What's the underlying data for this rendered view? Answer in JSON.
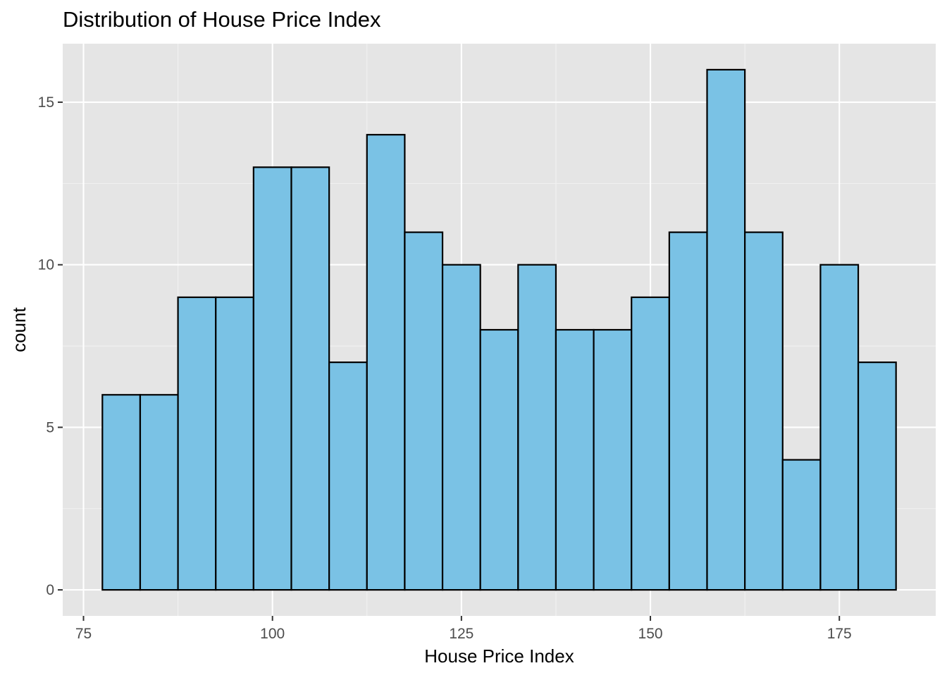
{
  "chart_data": {
    "type": "bar",
    "subtype": "histogram",
    "title": "Distribution of House Price Index",
    "xlabel": "House Price Index",
    "ylabel": "count",
    "bin_width": 5,
    "bins": [
      {
        "x0": 77.5,
        "x1": 82.5,
        "count": 6
      },
      {
        "x0": 82.5,
        "x1": 87.5,
        "count": 6
      },
      {
        "x0": 87.5,
        "x1": 92.5,
        "count": 9
      },
      {
        "x0": 92.5,
        "x1": 97.5,
        "count": 9
      },
      {
        "x0": 97.5,
        "x1": 102.5,
        "count": 13
      },
      {
        "x0": 102.5,
        "x1": 107.5,
        "count": 13
      },
      {
        "x0": 107.5,
        "x1": 112.5,
        "count": 7
      },
      {
        "x0": 112.5,
        "x1": 117.5,
        "count": 14
      },
      {
        "x0": 117.5,
        "x1": 122.5,
        "count": 11
      },
      {
        "x0": 122.5,
        "x1": 127.5,
        "count": 10
      },
      {
        "x0": 127.5,
        "x1": 132.5,
        "count": 8
      },
      {
        "x0": 132.5,
        "x1": 137.5,
        "count": 10
      },
      {
        "x0": 137.5,
        "x1": 142.5,
        "count": 8
      },
      {
        "x0": 142.5,
        "x1": 147.5,
        "count": 8
      },
      {
        "x0": 147.5,
        "x1": 152.5,
        "count": 9
      },
      {
        "x0": 152.5,
        "x1": 157.5,
        "count": 11
      },
      {
        "x0": 157.5,
        "x1": 162.5,
        "count": 16
      },
      {
        "x0": 162.5,
        "x1": 167.5,
        "count": 11
      },
      {
        "x0": 167.5,
        "x1": 172.5,
        "count": 4
      },
      {
        "x0": 172.5,
        "x1": 177.5,
        "count": 10
      },
      {
        "x0": 177.5,
        "x1": 182.5,
        "count": 7
      }
    ],
    "xlim": [
      72.25,
      187.75
    ],
    "ylim": [
      -0.8,
      16.8
    ],
    "x_ticks": [
      75,
      100,
      125,
      150,
      175
    ],
    "y_ticks": [
      0,
      5,
      10,
      15
    ],
    "grid": true,
    "legend": "none",
    "colors": {
      "panel_background": "#e5e5e5",
      "grid_major": "#ffffff",
      "grid_minor": "#f2f2f2",
      "bar_fill": "#7ac2e5",
      "bar_outline": "#000000",
      "axis_text": "#4d4d4d",
      "title_text": "#000000"
    }
  }
}
